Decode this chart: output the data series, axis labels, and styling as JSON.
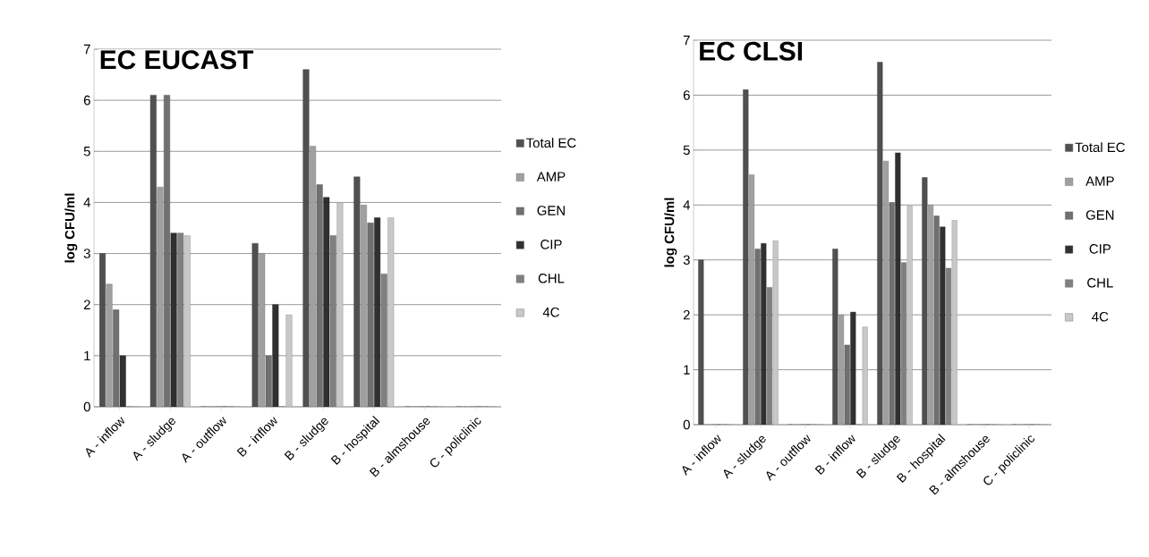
{
  "chart_data": [
    {
      "type": "bar",
      "title": "EC EUCAST",
      "ylabel": "log CFU/ml",
      "categories": [
        "A - inflow",
        "A - sludge",
        "A - outflow",
        "B - inflow",
        "B - sludge",
        "B - hospital",
        "B - almshouse",
        "C - policlinic"
      ],
      "series": [
        {
          "name": "Total EC",
          "color": "#505050",
          "values": [
            3.0,
            6.1,
            0,
            3.2,
            6.6,
            4.5,
            0,
            0
          ]
        },
        {
          "name": "AMP",
          "color": "#a0a0a0",
          "values": [
            2.4,
            4.3,
            0,
            3.0,
            5.1,
            3.95,
            0,
            0
          ]
        },
        {
          "name": "GEN",
          "color": "#707070",
          "values": [
            1.9,
            6.1,
            0,
            1.0,
            4.35,
            3.6,
            0,
            0
          ]
        },
        {
          "name": "CIP",
          "color": "#303030",
          "values": [
            1.0,
            3.4,
            0,
            2.0,
            4.1,
            3.7,
            0,
            0
          ]
        },
        {
          "name": "CHL",
          "color": "#808080",
          "values": [
            0,
            3.4,
            0,
            0,
            3.35,
            2.6,
            0,
            0
          ]
        },
        {
          "name": "4C",
          "color": "#c8c8c8",
          "values": [
            0,
            3.35,
            0,
            1.8,
            4.0,
            3.7,
            0,
            0
          ]
        }
      ],
      "ylim": [
        0,
        7
      ],
      "yticks": [
        0,
        1,
        2,
        3,
        4,
        5,
        6,
        7
      ],
      "grid": "y",
      "legend": "right"
    },
    {
      "type": "bar",
      "title": "EC CLSI",
      "ylabel": "log CFU/ml",
      "categories": [
        "A - inflow",
        "A - sludge",
        "A - outflow",
        "B - inflow",
        "B - sludge",
        "B - hospital",
        "B - almshouse",
        "C - policlinic"
      ],
      "series": [
        {
          "name": "Total EC",
          "color": "#505050",
          "values": [
            3.0,
            6.1,
            0,
            3.2,
            6.6,
            4.5,
            0,
            0
          ]
        },
        {
          "name": "AMP",
          "color": "#a0a0a0",
          "values": [
            0,
            4.55,
            0,
            2.0,
            4.8,
            4.0,
            0,
            0
          ]
        },
        {
          "name": "GEN",
          "color": "#707070",
          "values": [
            0,
            3.2,
            0,
            1.45,
            4.05,
            3.8,
            0,
            0
          ]
        },
        {
          "name": "CIP",
          "color": "#303030",
          "values": [
            0,
            3.3,
            0,
            2.05,
            4.95,
            3.6,
            0,
            0
          ]
        },
        {
          "name": "CHL",
          "color": "#808080",
          "values": [
            0,
            2.5,
            0,
            0,
            2.95,
            2.85,
            0,
            0
          ]
        },
        {
          "name": "4C",
          "color": "#c8c8c8",
          "values": [
            0,
            3.35,
            0,
            1.78,
            3.98,
            3.72,
            0,
            0
          ]
        }
      ],
      "ylim": [
        0,
        7
      ],
      "yticks": [
        0,
        1,
        2,
        3,
        4,
        5,
        6,
        7
      ],
      "grid": "y",
      "legend": "right"
    }
  ]
}
